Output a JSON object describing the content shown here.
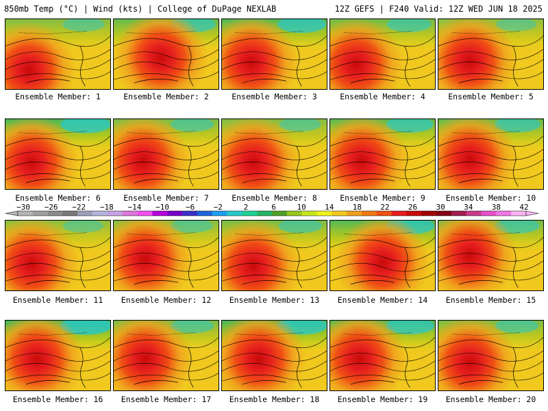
{
  "header": {
    "left": "850mb Temp (°C) | Wind (kts) | College of DuPage NEXLAB",
    "right": "12Z GEFS | F240 Valid: 12Z WED JUN 18 2025"
  },
  "members": [
    {
      "label": "Ensemble Member: 1",
      "hot_center": [
        0.22,
        0.72
      ],
      "cold_strength": 0.55
    },
    {
      "label": "Ensemble Member: 2",
      "hot_center": [
        0.45,
        0.55
      ],
      "cold_strength": 0.7
    },
    {
      "label": "Ensemble Member: 3",
      "hot_center": [
        0.28,
        0.62
      ],
      "cold_strength": 0.8
    },
    {
      "label": "Ensemble Member: 4",
      "hot_center": [
        0.25,
        0.65
      ],
      "cold_strength": 0.65
    },
    {
      "label": "Ensemble Member: 5",
      "hot_center": [
        0.3,
        0.6
      ],
      "cold_strength": 0.5
    },
    {
      "label": "Ensemble Member: 6",
      "hot_center": [
        0.25,
        0.62
      ],
      "cold_strength": 0.85
    },
    {
      "label": "Ensemble Member: 7",
      "hot_center": [
        0.28,
        0.6
      ],
      "cold_strength": 0.6
    },
    {
      "label": "Ensemble Member: 8",
      "hot_center": [
        0.3,
        0.62
      ],
      "cold_strength": 0.55
    },
    {
      "label": "Ensemble Member: 9",
      "hot_center": [
        0.3,
        0.6
      ],
      "cold_strength": 0.75
    },
    {
      "label": "Ensemble Member: 10",
      "hot_center": [
        0.3,
        0.58
      ],
      "cold_strength": 0.7
    },
    {
      "label": "Ensemble Member: 11",
      "hot_center": [
        0.25,
        0.62
      ],
      "cold_strength": 0.5
    },
    {
      "label": "Ensemble Member: 12",
      "hot_center": [
        0.3,
        0.55
      ],
      "cold_strength": 0.55
    },
    {
      "label": "Ensemble Member: 13",
      "hot_center": [
        0.3,
        0.65
      ],
      "cold_strength": 0.6
    },
    {
      "label": "Ensemble Member: 14",
      "hot_center": [
        0.5,
        0.6
      ],
      "cold_strength": 0.8
    },
    {
      "label": "Ensemble Member: 15",
      "hot_center": [
        0.3,
        0.5
      ],
      "cold_strength": 0.65
    },
    {
      "label": "Ensemble Member: 16",
      "hot_center": [
        0.3,
        0.55
      ],
      "cold_strength": 0.9
    },
    {
      "label": "Ensemble Member: 17",
      "hot_center": [
        0.3,
        0.55
      ],
      "cold_strength": 0.6
    },
    {
      "label": "Ensemble Member: 18",
      "hot_center": [
        0.35,
        0.55
      ],
      "cold_strength": 0.85
    },
    {
      "label": "Ensemble Member: 19",
      "hot_center": [
        0.28,
        0.55
      ],
      "cold_strength": 0.8
    },
    {
      "label": "Ensemble Member: 20",
      "hot_center": [
        0.3,
        0.6
      ],
      "cold_strength": 0.6
    }
  ],
  "colorbar": {
    "labels": [
      "-30",
      "-26",
      "-22",
      "-18",
      "-14",
      "-10",
      "-6",
      "-2",
      "2",
      "6",
      "10",
      "14",
      "18",
      "22",
      "26",
      "30",
      "34",
      "38",
      "42"
    ],
    "colors": [
      "#b4b4b4",
      "#a0a0a0",
      "#8c8c8c",
      "#787878",
      "#9aa0b8",
      "#b4b4dc",
      "#c8a0e6",
      "#dc78dc",
      "#f050f0",
      "#b400dc",
      "#7800c8",
      "#3c32c8",
      "#1e64dc",
      "#1ea0f0",
      "#28c8c8",
      "#1ed296",
      "#28b464",
      "#50a028",
      "#96c81e",
      "#c8e61e",
      "#f0f01e",
      "#f0c81e",
      "#f0a01e",
      "#f07814",
      "#f05014",
      "#e61e1e",
      "#c80a0a",
      "#a00000",
      "#820014",
      "#a01e50",
      "#c83c8c",
      "#e650c8",
      "#f078e6",
      "#f8b4f0"
    ]
  }
}
